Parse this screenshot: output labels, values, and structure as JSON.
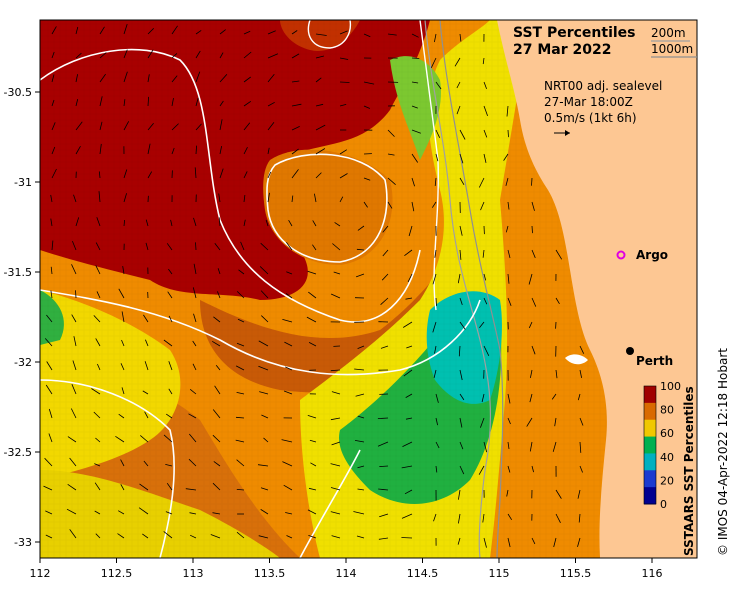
{
  "title": {
    "line1": "SST Percentiles",
    "line2": "27 Mar 2022",
    "depth_200": "200m",
    "depth_1000": "1000m"
  },
  "annotation": {
    "line1": "NRT00 adj. sealevel",
    "line2": "27-Mar 18:00Z",
    "line3": "0.5m/s (1kt 6h)"
  },
  "places": {
    "argo": "Argo",
    "perth": "Perth"
  },
  "colorbar": {
    "label": "SSTAARS SST Percentiles",
    "ticks": [
      "100",
      "80",
      "60",
      "40",
      "20",
      "0"
    ],
    "colors": [
      "#a00000",
      "#d96a00",
      "#f0c800",
      "#00b050",
      "#00b0c0",
      "#1a3ad0",
      "#000090"
    ]
  },
  "credit": "© IMOS 04-Apr-2022 12:18 Hobart",
  "axes": {
    "x_ticks": [
      "112",
      "112.5",
      "113",
      "113.5",
      "114",
      "114.5",
      "115",
      "115.5",
      "116"
    ],
    "y_ticks": [
      "-30.5",
      "-31",
      "-31.5",
      "-32",
      "-32.5",
      "-33"
    ]
  },
  "colors": {
    "land": "#fdc793",
    "deep_red": "#a80000",
    "dark_orange": "#d05a00",
    "orange": "#f08c00",
    "yellow": "#f0e000",
    "green": "#20b040",
    "cyan": "#00c0b0",
    "argo_marker": "#e000e0"
  }
}
